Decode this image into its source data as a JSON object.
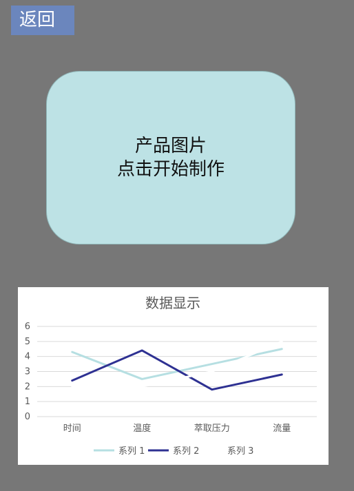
{
  "header": {
    "back_label": "返回"
  },
  "product_card": {
    "line1": "产品图片",
    "line2": "点击开始制作"
  },
  "colors": {
    "background": "#777777",
    "back_button": "#6b86bd",
    "card": "#bde2e5",
    "series_1": "#b6dfe2",
    "series_2": "#2e3192",
    "series_3": "#ffffff"
  },
  "chart_data": {
    "type": "line",
    "title": "数据显示",
    "categories": [
      "时间",
      "温度",
      "萃取压力",
      "流量"
    ],
    "series": [
      {
        "name": "系列 1",
        "values": [
          4.3,
          2.5,
          3.5,
          4.5
        ]
      },
      {
        "name": "系列 2",
        "values": [
          2.4,
          4.4,
          1.8,
          2.8
        ]
      },
      {
        "name": "系列 3",
        "values": [
          2.0,
          2.0,
          3.0,
          5.0
        ]
      }
    ],
    "y_ticks": [
      "0",
      "1",
      "2",
      "3",
      "4",
      "5",
      "6"
    ],
    "ylim": [
      0,
      6
    ],
    "grid": true,
    "legend_position": "bottom"
  }
}
